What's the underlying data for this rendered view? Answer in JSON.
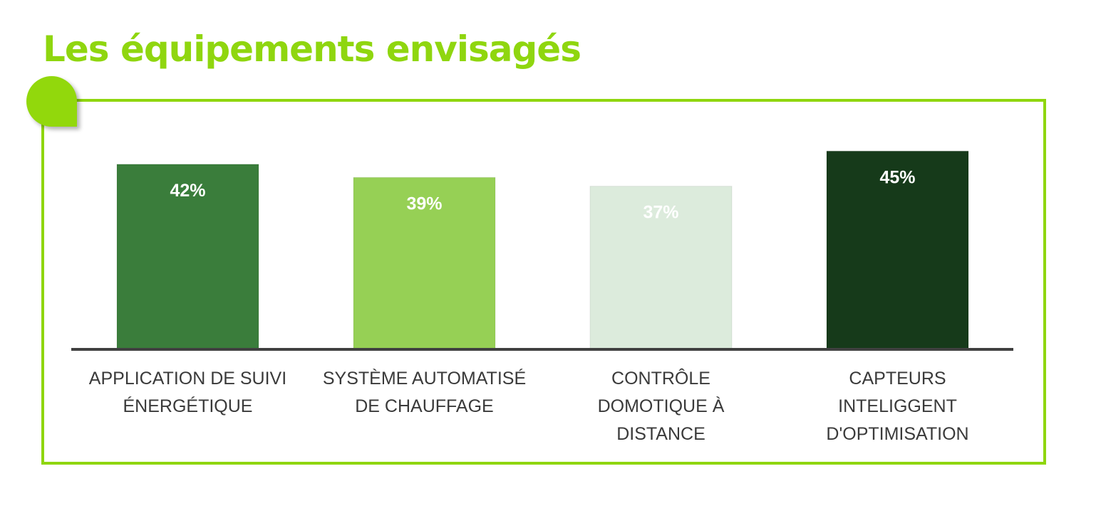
{
  "title": "Les équipements envisagés",
  "chart_data": {
    "type": "bar",
    "title": "Les équipements envisagés",
    "categories": [
      "APPLICATION DE SUIVI ÉNERGÉTIQUE",
      "SYSTÈME AUTOMATISÉ DE CHAUFFAGE",
      "CONTRÔLE DOMOTIQUE À DISTANCE",
      "CAPTEURS INTELIGGENT D'OPTIMISATION"
    ],
    "category_lines": [
      "APPLICATION DE SUIVI\nÉNERGÉTIQUE",
      "SYSTÈME AUTOMATISÉ\nDE CHAUFFAGE",
      "CONTRÔLE\nDOMOTIQUE À\nDISTANCE",
      "CAPTEURS\nINTELIGGENT\nD'OPTIMISATION"
    ],
    "values": [
      42,
      39,
      37,
      45
    ],
    "data_labels": [
      "42%",
      "39%",
      "37%",
      "45%"
    ],
    "colors": [
      "#3a7d3b",
      "#96d055",
      "#dcebdc",
      "#163a1a"
    ],
    "xlabel": "",
    "ylabel": "",
    "ylim": [
      0,
      50
    ],
    "grid": false,
    "legend": "none"
  }
}
